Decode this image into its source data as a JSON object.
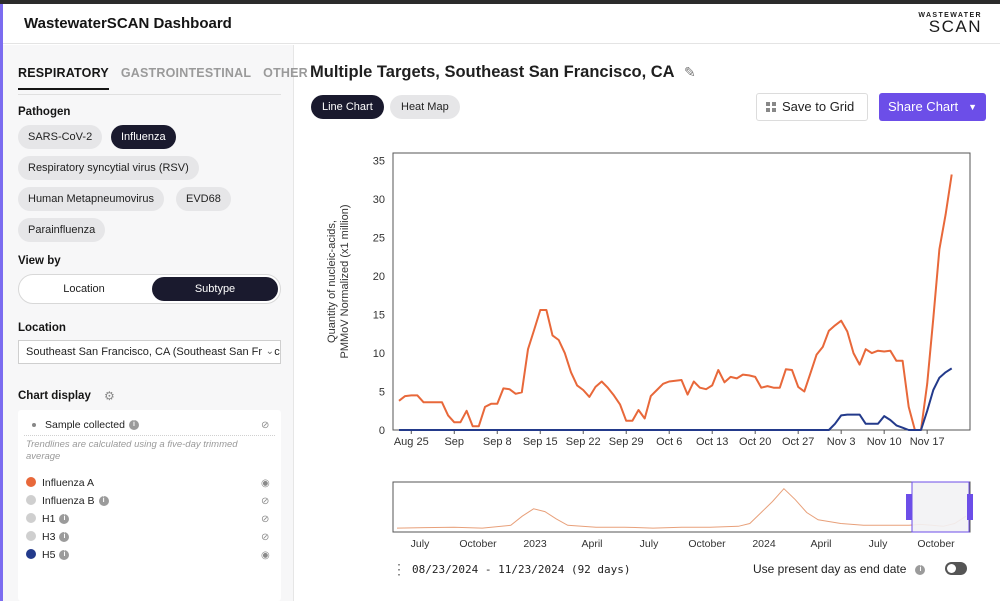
{
  "header": {
    "title": "WastewaterSCAN Dashboard",
    "logo_top": "WASTEWATER",
    "logo_bottom": "SCAN"
  },
  "sidebar": {
    "tabs": [
      {
        "label": "RESPIRATORY",
        "active": true
      },
      {
        "label": "GASTROINTESTINAL",
        "active": false
      },
      {
        "label": "OTHER",
        "active": false
      }
    ],
    "pathogen_label": "Pathogen",
    "pathogens": [
      {
        "label": "SARS-CoV-2",
        "active": false
      },
      {
        "label": "Influenza",
        "active": true
      },
      {
        "label": "Respiratory syncytial virus (RSV)",
        "active": false
      },
      {
        "label": "Human Metapneumovirus",
        "active": false
      },
      {
        "label": "EVD68",
        "active": false
      },
      {
        "label": "Parainfluenza",
        "active": false
      }
    ],
    "view_by_label": "View by",
    "view_by": {
      "left": "Location",
      "right": "Subtype",
      "selected": "Subtype"
    },
    "location_label": "Location",
    "location_value": "Southeast San Francisco, CA (Southeast San Francisco)",
    "chart_display_label": "Chart display",
    "sample_collected": "Sample collected",
    "trend_note": "Trendlines are calculated using a five-day trimmed average",
    "legend": [
      {
        "label": "Influenza A",
        "color": "#e8683a",
        "info": false
      },
      {
        "label": "Influenza B",
        "color": "#cfcfcf",
        "info": true
      },
      {
        "label": "H1",
        "color": "#cfcfcf",
        "info": true
      },
      {
        "label": "H3",
        "color": "#cfcfcf",
        "info": true
      },
      {
        "label": "H5",
        "color": "#233a8b",
        "info": true
      }
    ]
  },
  "main": {
    "title": "Multiple Targets, Southeast San Francisco, CA",
    "chart_types": {
      "line": "Line Chart",
      "heat": "Heat Map"
    },
    "save_label": "Save to Grid",
    "share_label": "Share Chart",
    "date_range": "08/23/2024 - 11/23/2024 (92 days)",
    "present_day_label": "Use present day as end date",
    "present_day_on": false
  },
  "chart_data": {
    "type": "line",
    "ylabel": "Quantity of nucleic-acids, PMMoV Normalized (x1 million)",
    "ylim": [
      0,
      36
    ],
    "yticks": [
      0,
      5,
      10,
      15,
      20,
      25,
      30,
      35
    ],
    "xlim": [
      0,
      92
    ],
    "xticks": [
      {
        "label": "Aug 25",
        "x": 2
      },
      {
        "label": "Sep",
        "x": 9
      },
      {
        "label": "Sep 8",
        "x": 16
      },
      {
        "label": "Sep 15",
        "x": 23
      },
      {
        "label": "Sep 22",
        "x": 30
      },
      {
        "label": "Sep 29",
        "x": 37
      },
      {
        "label": "Oct 6",
        "x": 44
      },
      {
        "label": "Oct 13",
        "x": 51
      },
      {
        "label": "Oct 20",
        "x": 58
      },
      {
        "label": "Oct 27",
        "x": 65
      },
      {
        "label": "Nov 3",
        "x": 72
      },
      {
        "label": "Nov 10",
        "x": 79
      },
      {
        "label": "Nov 17",
        "x": 86
      }
    ],
    "series": [
      {
        "name": "Influenza A",
        "color": "#e8683a",
        "x": [
          0,
          1,
          2,
          3,
          4,
          5,
          6,
          7,
          8,
          9,
          10,
          11,
          12,
          13,
          14,
          15,
          16,
          17,
          18,
          19,
          20,
          21,
          22,
          23,
          24,
          25,
          26,
          27,
          28,
          29,
          30,
          31,
          32,
          33,
          34,
          35,
          36,
          37,
          38,
          39,
          40,
          41,
          42,
          43,
          44,
          45,
          46,
          47,
          48,
          49,
          50,
          51,
          52,
          53,
          54,
          55,
          56,
          57,
          58,
          59,
          60,
          61,
          62,
          63,
          64,
          65,
          66,
          67,
          68,
          69,
          70,
          71,
          72,
          73,
          74,
          75,
          76,
          77,
          78,
          79,
          80,
          81,
          82,
          83,
          84,
          85,
          86,
          87,
          88,
          89,
          90
        ],
        "y": [
          3.8,
          4.4,
          4.5,
          4.5,
          3.6,
          3.6,
          3.6,
          3.6,
          1.9,
          1.0,
          1.0,
          2.5,
          0.5,
          0.5,
          3.0,
          3.4,
          3.4,
          5.4,
          5.3,
          4.7,
          4.9,
          10.5,
          13.0,
          15.6,
          15.6,
          12.3,
          11.7,
          10.0,
          7.5,
          5.8,
          5.2,
          4.3,
          5.6,
          6.3,
          5.5,
          4.5,
          3.3,
          1.2,
          1.2,
          2.6,
          1.5,
          4.4,
          5.2,
          6.0,
          6.3,
          6.4,
          6.5,
          4.6,
          6.3,
          5.5,
          5.3,
          5.8,
          7.8,
          6.2,
          6.9,
          6.7,
          7.2,
          7.1,
          6.9,
          5.5,
          5.7,
          5.5,
          5.5,
          7.9,
          7.8,
          5.6,
          5.0,
          7.4,
          9.8,
          10.8,
          12.9,
          13.6,
          14.2,
          12.8,
          10.0,
          8.5,
          10.5,
          10.0,
          10.3,
          10.2,
          10.3,
          9.0,
          9.0,
          3.0,
          0.0,
          0.0,
          6.0,
          14.5,
          23.5,
          28.0,
          33.2
        ]
      },
      {
        "name": "H5",
        "color": "#233a8b",
        "x": [
          0,
          68,
          69,
          70,
          71,
          72,
          73,
          74,
          75,
          76,
          77,
          78,
          79,
          80,
          81,
          82,
          83,
          84,
          85,
          86,
          87,
          88,
          89,
          90
        ],
        "y": [
          0,
          0,
          0,
          0,
          0.8,
          1.9,
          2.0,
          2.0,
          2.0,
          0.8,
          0.8,
          0.8,
          1.8,
          1.3,
          0.6,
          0.3,
          0.0,
          0.0,
          0.0,
          2.5,
          5.2,
          6.8,
          7.5,
          8.0
        ]
      }
    ],
    "navigator": {
      "xticks": [
        "July",
        "October",
        "2023",
        "April",
        "July",
        "October",
        "2024",
        "April",
        "July",
        "October"
      ]
    }
  }
}
